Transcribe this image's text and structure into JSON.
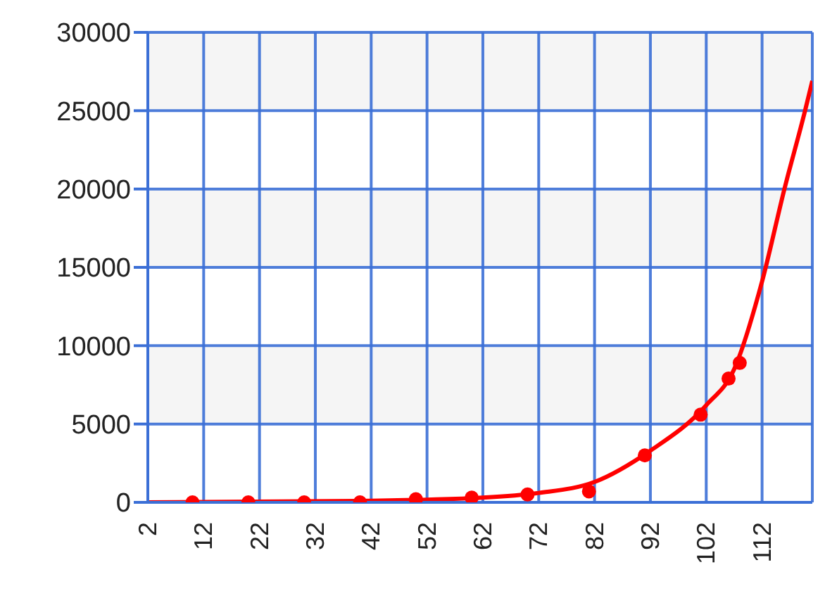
{
  "chart_data": {
    "type": "scatter",
    "xlim": [
      2,
      121
    ],
    "xticks": [
      2,
      12,
      22,
      32,
      42,
      52,
      62,
      72,
      82,
      92,
      102,
      112
    ],
    "ylim": [
      0,
      30000
    ],
    "yticks": [
      0,
      5000,
      10000,
      15000,
      20000,
      25000,
      30000
    ],
    "grid": true,
    "marker": "circle",
    "series": [
      {
        "color": "#ff0000",
        "x": [
          10,
          20,
          30,
          40,
          50,
          60,
          70,
          81,
          91,
          101,
          106,
          108
        ],
        "values": [
          0,
          0,
          0,
          0,
          200,
          300,
          500,
          700,
          3000,
          5600,
          7900,
          8900
        ]
      },
      {
        "type": "line",
        "color": "#ff0000",
        "marker": "none",
        "line_style": "solid",
        "x": [
          2,
          42,
          62,
          72,
          82,
          92,
          102,
          107,
          112,
          116,
          119.7,
          121
        ],
        "values": [
          0,
          100,
          300,
          600,
          1300,
          3300,
          6200,
          8500,
          14100,
          20000,
          25000,
          26900
        ]
      }
    ]
  }
}
